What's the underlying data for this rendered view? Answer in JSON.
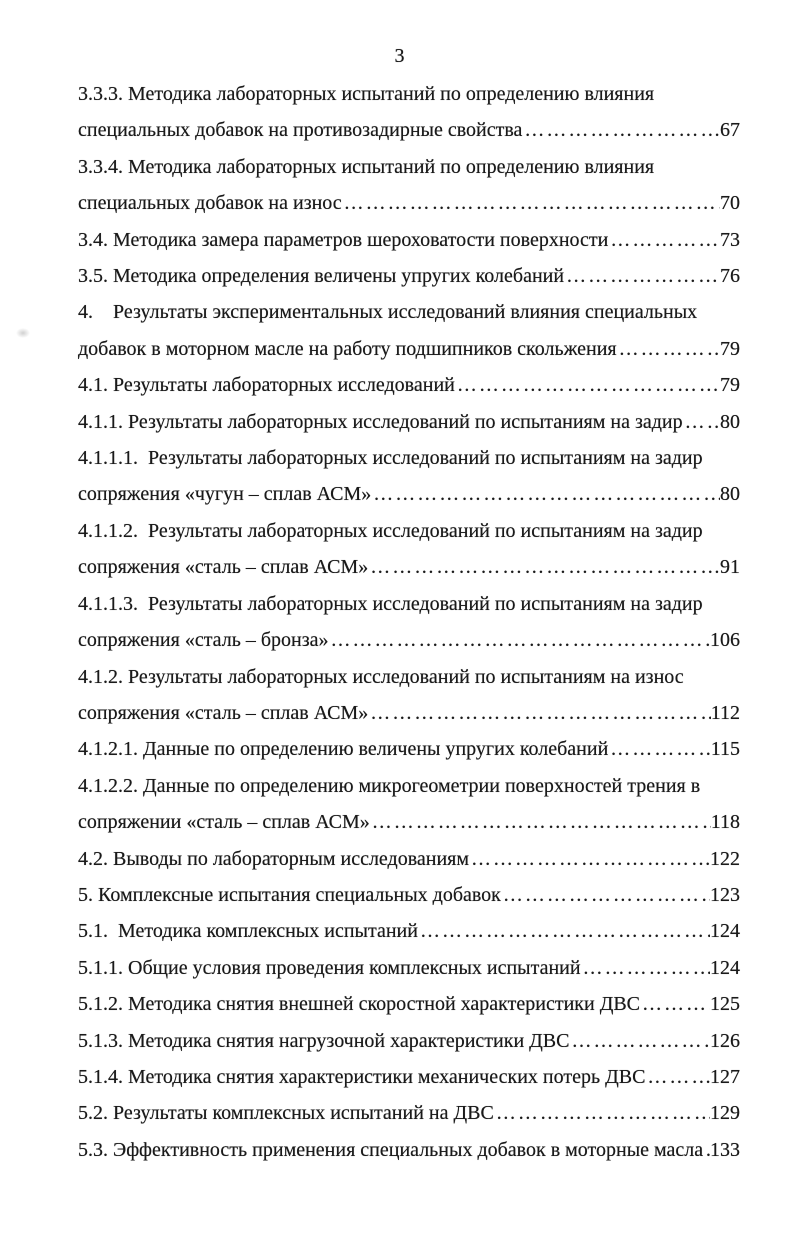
{
  "document": {
    "page_number": "3",
    "leader_dots": "……………………………………………………………………………………………………………………………………………………",
    "entries": [
      {
        "text": "3.3.3. Методика лабораторных испытаний по определению влияния",
        "page": ""
      },
      {
        "text": "специальных добавок на противозадирные свойства",
        "page": "67"
      },
      {
        "text": "3.3.4. Методика лабораторных испытаний по определению влияния",
        "page": ""
      },
      {
        "text": "специальных добавок на износ",
        "page": "70"
      },
      {
        "text": "3.4. Методика замера параметров шероховатости поверхности",
        "page": "73"
      },
      {
        "text": "3.5. Методика определения величены упругих колебаний",
        "page": "76"
      },
      {
        "text": "4.    Результаты экспериментальных исследований влияния специальных",
        "page": ""
      },
      {
        "text": "добавок в моторном масле на работу подшипников скольжения",
        "page": "79"
      },
      {
        "text": "4.1. Результаты лабораторных исследований",
        "page": "79"
      },
      {
        "text": "4.1.1. Результаты лабораторных исследований по испытаниям на задир",
        "page": "80"
      },
      {
        "text": "4.1.1.1.  Результаты лабораторных исследований по испытаниям на задир",
        "page": ""
      },
      {
        "text": "сопряжения «чугун – сплав АСМ»",
        "page": "80"
      },
      {
        "text": "4.1.1.2.  Результаты лабораторных исследований по испытаниям на задир",
        "page": ""
      },
      {
        "text": "сопряжения «сталь – сплав АСМ»",
        "page": "91"
      },
      {
        "text": "4.1.1.3.  Результаты лабораторных исследований по испытаниям на задир",
        "page": ""
      },
      {
        "text": "сопряжения «сталь – бронза»",
        "page": "106"
      },
      {
        "text": "4.1.2. Результаты лабораторных исследований по испытаниям на износ",
        "page": ""
      },
      {
        "text": "сопряжения «сталь – сплав АСМ»",
        "page": "112"
      },
      {
        "text": "4.1.2.1. Данные по определению величены упругих колебаний",
        "page": "115"
      },
      {
        "text": "4.1.2.2. Данные по определению микрогеометрии поверхностей трения в",
        "page": ""
      },
      {
        "text": "сопряжении «сталь – сплав АСМ»",
        "page": "118"
      },
      {
        "text": "4.2. Выводы по лабораторным исследованиям",
        "page": "122"
      },
      {
        "text": "5. Комплексные испытания специальных добавок",
        "page": "123"
      },
      {
        "text": "5.1.  Методика комплексных испытаний",
        "page": "124"
      },
      {
        "text": "5.1.1. Общие условия проведения комплексных испытаний",
        "page": "124"
      },
      {
        "text": "5.1.2. Методика снятия внешней скоростной характеристики ДВС",
        "page": "125"
      },
      {
        "text": "5.1.3. Методика снятия нагрузочной характеристики ДВС",
        "page": "126"
      },
      {
        "text": "5.1.4. Методика снятия характеристики механических потерь ДВС",
        "page": "127"
      },
      {
        "text": "5.2. Результаты комплексных испытаний на ДВС",
        "page": "129"
      },
      {
        "text": "5.3. Эффективность применения специальных добавок в моторные масла",
        "page": "133"
      }
    ]
  }
}
